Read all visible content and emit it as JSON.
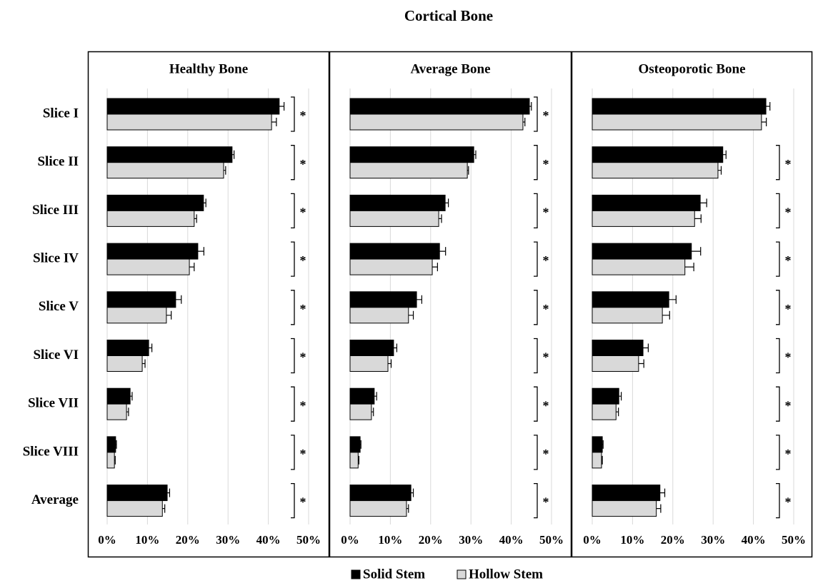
{
  "title": "Cortical Bone",
  "chart_data": [
    {
      "type": "bar",
      "orientation": "horizontal",
      "title": "Healthy Bone",
      "categories": [
        "Slice I",
        "Slice II",
        "Slice III",
        "Slice IV",
        "Slice V",
        "Slice VI",
        "Slice VII",
        "Slice VIII",
        "Average"
      ],
      "series": [
        {
          "name": "Solid Stem",
          "color": "#000000",
          "values": [
            42.7,
            31.0,
            23.9,
            22.5,
            17.0,
            10.3,
            5.7,
            2.1,
            14.9
          ],
          "errors": [
            1.2,
            0.5,
            0.6,
            1.5,
            1.4,
            0.8,
            0.5,
            0.2,
            0.6
          ]
        },
        {
          "name": "Hollow Stem",
          "color": "#d9d9d9",
          "values": [
            40.8,
            28.9,
            21.6,
            20.4,
            14.7,
            8.7,
            4.8,
            1.8,
            13.7
          ],
          "errors": [
            1.2,
            0.5,
            0.6,
            1.2,
            1.2,
            0.7,
            0.5,
            0.2,
            0.6
          ]
        }
      ],
      "significance": [
        "*",
        "*",
        "*",
        "*",
        "*",
        "*",
        "*",
        "*",
        "*"
      ],
      "xlim": [
        0,
        50
      ],
      "xticks": [
        {
          "value": 0,
          "label": "0%"
        },
        {
          "value": 10,
          "label": "10%"
        },
        {
          "value": 20,
          "label": "20%"
        },
        {
          "value": 30,
          "label": "30%"
        },
        {
          "value": 40,
          "label": "40%"
        },
        {
          "value": 50,
          "label": "50%"
        }
      ],
      "grid": true
    },
    {
      "type": "bar",
      "orientation": "horizontal",
      "title": "Average Bone",
      "series": [
        {
          "color": "#000000",
          "values": [
            44.5,
            30.7,
            23.6,
            22.2,
            16.5,
            10.8,
            6.0,
            2.5,
            15.1
          ],
          "errors": [
            0.5,
            0.5,
            0.8,
            1.5,
            1.3,
            0.8,
            0.6,
            0.2,
            0.6
          ]
        },
        {
          "color": "#d9d9d9",
          "values": [
            42.9,
            29.1,
            22.0,
            20.4,
            14.5,
            9.4,
            5.3,
            2.0,
            14.0
          ],
          "errors": [
            0.5,
            0.3,
            0.7,
            1.3,
            1.2,
            0.8,
            0.5,
            0.2,
            0.5
          ]
        }
      ],
      "significance": [
        "*",
        "*",
        "*",
        "*",
        "*",
        "*",
        "*",
        "*",
        "*"
      ],
      "xlim": [
        0,
        50
      ],
      "xticks": [
        {
          "value": 0,
          "label": "0%"
        },
        {
          "value": 10,
          "label": "10%"
        },
        {
          "value": 20,
          "label": "20%"
        },
        {
          "value": 30,
          "label": "30%"
        },
        {
          "value": 40,
          "label": "40%"
        },
        {
          "value": 50,
          "label": "50%"
        }
      ],
      "grid": true
    },
    {
      "type": "bar",
      "orientation": "horizontal",
      "title": "Osteoporotic Bone",
      "series": [
        {
          "color": "#000000",
          "values": [
            43.1,
            32.4,
            26.8,
            24.6,
            19.0,
            12.6,
            6.6,
            2.5,
            16.8
          ],
          "errors": [
            1.0,
            0.8,
            1.6,
            2.3,
            1.8,
            1.3,
            0.6,
            0.2,
            1.2
          ]
        },
        {
          "color": "#d9d9d9",
          "values": [
            42.0,
            31.2,
            25.4,
            23.0,
            17.4,
            11.5,
            5.9,
            2.3,
            15.9
          ],
          "errors": [
            1.2,
            0.8,
            1.6,
            2.2,
            1.8,
            1.3,
            0.6,
            0.2,
            1.1
          ]
        }
      ],
      "significance": [
        null,
        "*",
        "*",
        "*",
        "*",
        "*",
        "*",
        "*",
        "*"
      ],
      "xlim": [
        0,
        50
      ],
      "xticks": [
        {
          "value": 0,
          "label": "0%"
        },
        {
          "value": 10,
          "label": "10%"
        },
        {
          "value": 20,
          "label": "20%"
        },
        {
          "value": 30,
          "label": "30%"
        },
        {
          "value": 40,
          "label": "40%"
        },
        {
          "value": 50,
          "label": "50%"
        }
      ],
      "grid": true
    }
  ]
}
